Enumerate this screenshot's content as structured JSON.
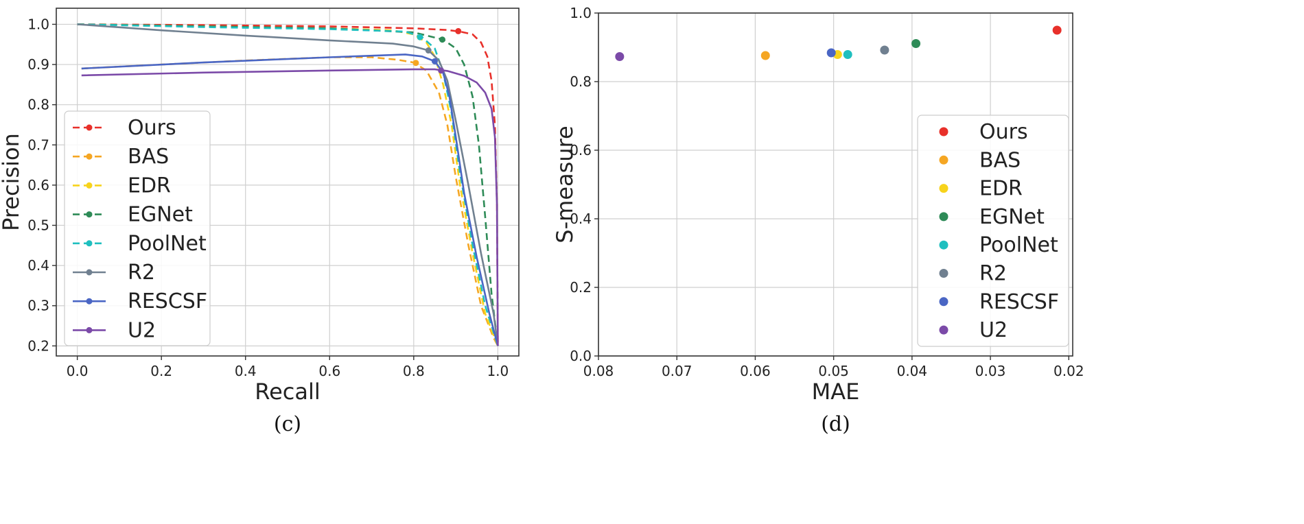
{
  "chart_data": [
    {
      "type": "line",
      "panel_caption": "(c)",
      "xlabel": "Recall",
      "ylabel": "Precision",
      "xlim": [
        -0.05,
        1.05
      ],
      "ylim": [
        0.175,
        1.04
      ],
      "xticks": [
        "0.0",
        "0.2",
        "0.4",
        "0.6",
        "0.8",
        "1.0"
      ],
      "yticks": [
        "0.2",
        "0.3",
        "0.4",
        "0.5",
        "0.6",
        "0.7",
        "0.8",
        "0.9",
        "1.0"
      ],
      "grid": true,
      "legend_position": "left",
      "series": [
        {
          "name": "Ours",
          "color": "#e8302a",
          "dashed": true,
          "points": [
            [
              0.0,
              1.0
            ],
            [
              0.3,
              0.998
            ],
            [
              0.6,
              0.995
            ],
            [
              0.8,
              0.99
            ],
            [
              0.88,
              0.986
            ],
            [
              0.91,
              0.982
            ],
            [
              0.94,
              0.975
            ],
            [
              0.96,
              0.955
            ],
            [
              0.975,
              0.92
            ],
            [
              0.985,
              0.86
            ],
            [
              0.993,
              0.75
            ],
            [
              0.998,
              0.55
            ],
            [
              1.0,
              0.2
            ]
          ],
          "marker": [
            0.906,
            0.983
          ]
        },
        {
          "name": "BAS",
          "color": "#f5a623",
          "dashed": true,
          "points": [
            [
              0.01,
              0.89
            ],
            [
              0.2,
              0.9
            ],
            [
              0.4,
              0.91
            ],
            [
              0.6,
              0.918
            ],
            [
              0.7,
              0.918
            ],
            [
              0.76,
              0.912
            ],
            [
              0.8,
              0.905
            ],
            [
              0.83,
              0.885
            ],
            [
              0.86,
              0.83
            ],
            [
              0.88,
              0.75
            ],
            [
              0.9,
              0.62
            ],
            [
              0.93,
              0.45
            ],
            [
              0.96,
              0.3
            ],
            [
              0.99,
              0.22
            ],
            [
              1.0,
              0.2
            ]
          ],
          "marker": [
            0.805,
            0.904
          ]
        },
        {
          "name": "EDR",
          "color": "#f7d31c",
          "dashed": true,
          "points": [
            [
              0.0,
              1.0
            ],
            [
              0.3,
              0.995
            ],
            [
              0.6,
              0.99
            ],
            [
              0.75,
              0.985
            ],
            [
              0.8,
              0.975
            ],
            [
              0.83,
              0.955
            ],
            [
              0.85,
              0.92
            ],
            [
              0.87,
              0.85
            ],
            [
              0.89,
              0.75
            ],
            [
              0.91,
              0.6
            ],
            [
              0.94,
              0.43
            ],
            [
              0.97,
              0.28
            ],
            [
              1.0,
              0.2
            ]
          ],
          "marker": [
            0.815,
            0.968
          ]
        },
        {
          "name": "EGNet",
          "color": "#2e8b57",
          "dashed": true,
          "points": [
            [
              0.0,
              1.0
            ],
            [
              0.3,
              0.995
            ],
            [
              0.6,
              0.99
            ],
            [
              0.8,
              0.98
            ],
            [
              0.87,
              0.962
            ],
            [
              0.9,
              0.94
            ],
            [
              0.92,
              0.9
            ],
            [
              0.94,
              0.82
            ],
            [
              0.955,
              0.7
            ],
            [
              0.97,
              0.52
            ],
            [
              0.985,
              0.33
            ],
            [
              1.0,
              0.2
            ]
          ],
          "marker": [
            0.868,
            0.962
          ]
        },
        {
          "name": "PoolNet",
          "color": "#1fbfbf",
          "dashed": true,
          "points": [
            [
              0.0,
              1.0
            ],
            [
              0.3,
              0.993
            ],
            [
              0.6,
              0.988
            ],
            [
              0.78,
              0.982
            ],
            [
              0.82,
              0.968
            ],
            [
              0.85,
              0.94
            ],
            [
              0.87,
              0.88
            ],
            [
              0.89,
              0.78
            ],
            [
              0.91,
              0.63
            ],
            [
              0.94,
              0.45
            ],
            [
              0.97,
              0.3
            ],
            [
              1.0,
              0.2
            ]
          ],
          "marker": [
            0.815,
            0.968
          ]
        },
        {
          "name": "R2",
          "color": "#708090",
          "dashed": false,
          "points": [
            [
              0.0,
              1.0
            ],
            [
              0.2,
              0.985
            ],
            [
              0.4,
              0.972
            ],
            [
              0.6,
              0.96
            ],
            [
              0.75,
              0.952
            ],
            [
              0.8,
              0.945
            ],
            [
              0.835,
              0.935
            ],
            [
              0.86,
              0.91
            ],
            [
              0.88,
              0.86
            ],
            [
              0.9,
              0.76
            ],
            [
              0.93,
              0.6
            ],
            [
              0.96,
              0.43
            ],
            [
              0.99,
              0.28
            ],
            [
              1.0,
              0.2
            ]
          ],
          "marker": [
            0.835,
            0.935
          ]
        },
        {
          "name": "RESCSF",
          "color": "#4a66c4",
          "dashed": false,
          "points": [
            [
              0.01,
              0.89
            ],
            [
              0.3,
              0.905
            ],
            [
              0.6,
              0.918
            ],
            [
              0.78,
              0.925
            ],
            [
              0.82,
              0.92
            ],
            [
              0.85,
              0.908
            ],
            [
              0.87,
              0.88
            ],
            [
              0.885,
              0.82
            ],
            [
              0.9,
              0.72
            ],
            [
              0.92,
              0.58
            ],
            [
              0.95,
              0.42
            ],
            [
              0.98,
              0.28
            ],
            [
              1.0,
              0.2
            ]
          ],
          "marker": [
            0.85,
            0.908
          ]
        },
        {
          "name": "U2",
          "color": "#7b4aa8",
          "dashed": false,
          "points": [
            [
              0.01,
              0.873
            ],
            [
              0.3,
              0.88
            ],
            [
              0.6,
              0.885
            ],
            [
              0.8,
              0.888
            ],
            [
              0.85,
              0.888
            ],
            [
              0.88,
              0.884
            ],
            [
              0.92,
              0.872
            ],
            [
              0.95,
              0.855
            ],
            [
              0.97,
              0.83
            ],
            [
              0.985,
              0.79
            ],
            [
              0.993,
              0.72
            ],
            [
              0.998,
              0.55
            ],
            [
              1.0,
              0.2
            ]
          ],
          "marker": [
            0.865,
            0.885
          ]
        }
      ]
    },
    {
      "type": "scatter",
      "panel_caption": "(d)",
      "xlabel": "MAE",
      "ylabel": "S-measure",
      "xlim": [
        0.08,
        0.0195
      ],
      "ylim": [
        0.0,
        1.0
      ],
      "xticks": [
        0.08,
        0.07,
        0.06,
        0.05,
        0.04,
        0.03,
        0.02
      ],
      "xtick_labels": [
        "0.08",
        "0.07",
        "0.06",
        "0.05",
        "0.04",
        "0.03",
        "0.02"
      ],
      "yticks": [
        0.0,
        0.2,
        0.4,
        0.6,
        0.8,
        1.0
      ],
      "ytick_labels": [
        "0.0",
        "0.2",
        "0.4",
        "0.6",
        "0.8",
        "1.0"
      ],
      "grid": true,
      "legend_position": "right",
      "series": [
        {
          "name": "Ours",
          "color": "#e8302a",
          "x": 0.0215,
          "y": 0.95
        },
        {
          "name": "BAS",
          "color": "#f5a623",
          "x": 0.0587,
          "y": 0.876
        },
        {
          "name": "EDR",
          "color": "#f7d31c",
          "x": 0.0495,
          "y": 0.879
        },
        {
          "name": "EGNet",
          "color": "#2e8b57",
          "x": 0.0395,
          "y": 0.911
        },
        {
          "name": "PoolNet",
          "color": "#1fbfbf",
          "x": 0.0482,
          "y": 0.879
        },
        {
          "name": "R2",
          "color": "#708090",
          "x": 0.0435,
          "y": 0.892
        },
        {
          "name": "RESCSF",
          "color": "#4a66c4",
          "x": 0.0503,
          "y": 0.884
        },
        {
          "name": "U2",
          "color": "#7b4aa8",
          "x": 0.0773,
          "y": 0.873
        }
      ]
    }
  ]
}
